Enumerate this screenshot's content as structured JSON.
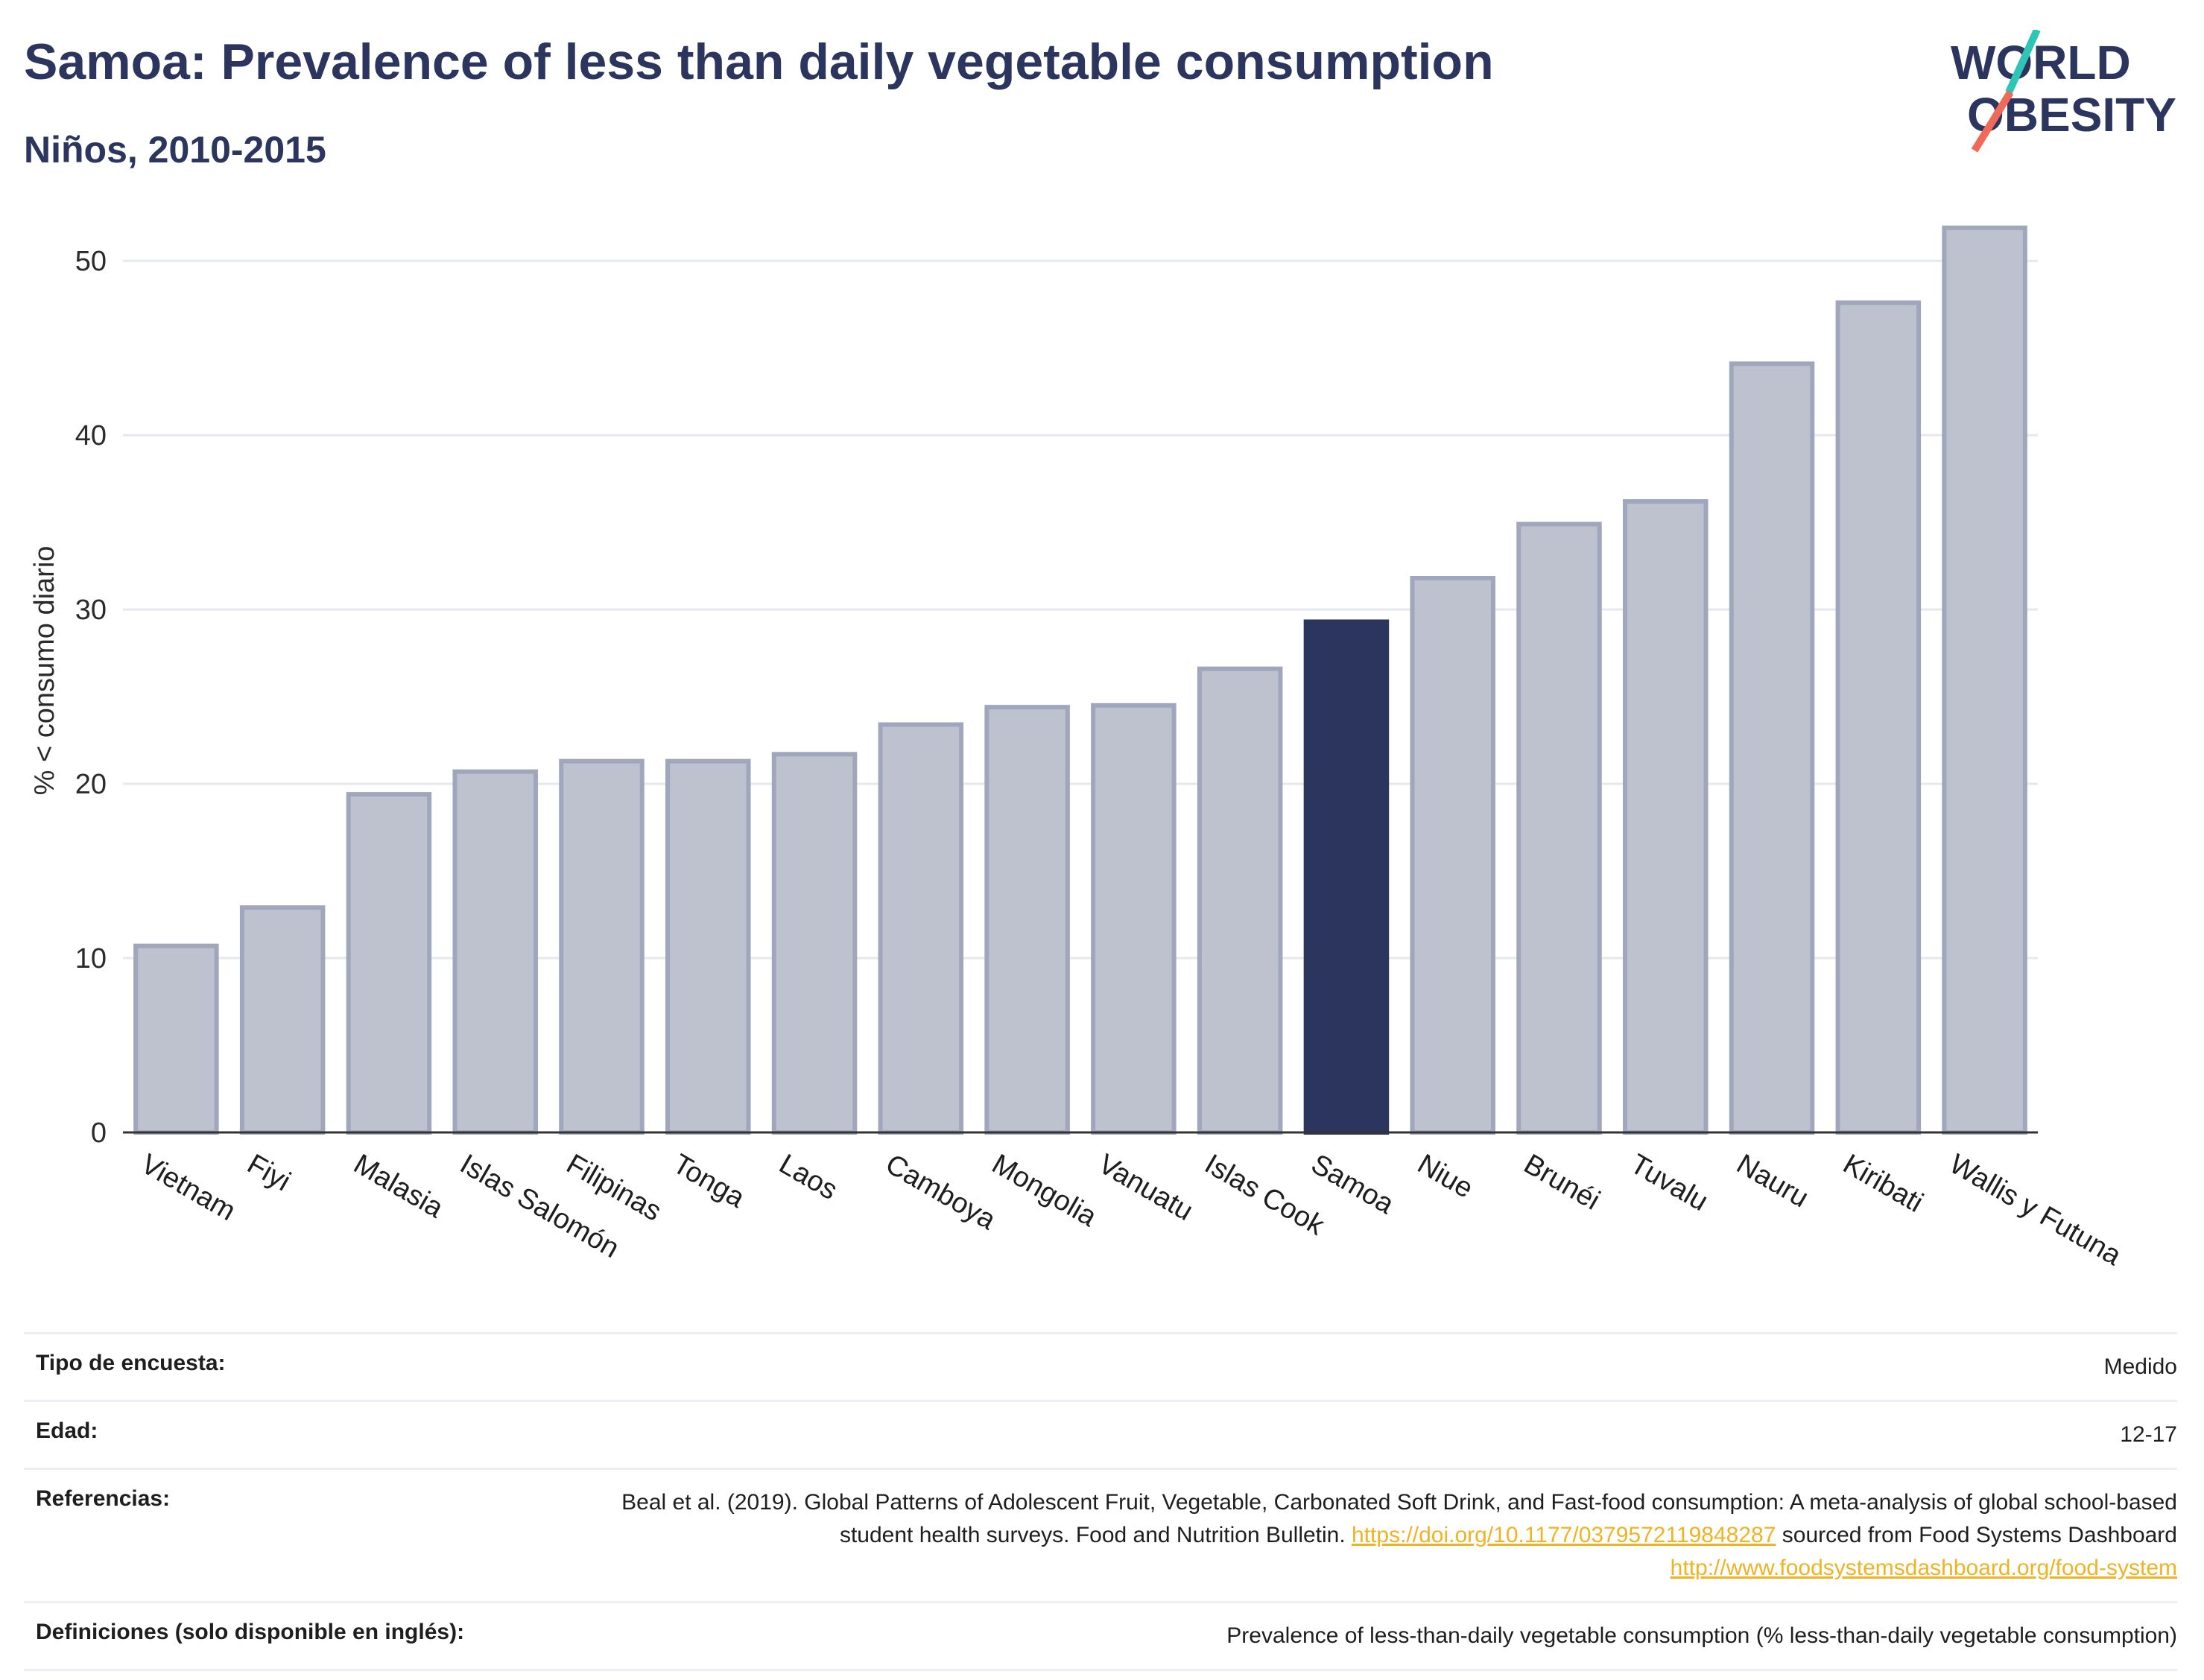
{
  "header": {
    "title": "Samoa: Prevalence of less than daily vegetable consumption",
    "subtitle": "Niños, 2010-2015"
  },
  "logo": {
    "line1": "WORLD",
    "line2": "OBESITY",
    "colors": {
      "text": "#2b355e",
      "slash_teal": "#2ec4b6",
      "slash_coral": "#f06a5a"
    }
  },
  "chart_data": {
    "type": "bar",
    "title": "",
    "xlabel": "",
    "ylabel": "% < consumo diario",
    "ylim": [
      0,
      53
    ],
    "yticks": [
      0,
      10,
      20,
      30,
      40,
      50
    ],
    "grid": true,
    "highlight": "Samoa",
    "colors": {
      "bar": "#bec2cf",
      "bar_border": "#a0a7bd",
      "highlight": "#2b355e",
      "grid": "#e6e8ef",
      "axis": "#333333"
    },
    "categories": [
      "Vietnam",
      "Fiyi",
      "Malasia",
      "Islas Salomón",
      "Filipinas",
      "Tonga",
      "Laos",
      "Camboya",
      "Mongolia",
      "Vanuatu",
      "Islas Cook",
      "Samoa",
      "Niue",
      "Brunéi",
      "Tuvalu",
      "Nauru",
      "Kiribati",
      "Wallis y Futuna"
    ],
    "values": [
      10.7,
      12.9,
      19.4,
      20.7,
      21.3,
      21.3,
      21.7,
      23.4,
      24.4,
      24.5,
      26.6,
      29.3,
      31.8,
      34.9,
      36.2,
      44.1,
      47.6,
      51.9
    ]
  },
  "info": {
    "survey_type": {
      "label": "Tipo de encuesta:",
      "value": "Medido"
    },
    "age": {
      "label": "Edad:",
      "value": "12-17"
    },
    "references": {
      "label": "Referencias:",
      "text1": "Beal et al. (2019). Global Patterns of Adolescent Fruit, Vegetable, Carbonated Soft Drink, and Fast-food consumption: A meta-analysis of global school-based student health surveys. Food and Nutrition Bulletin. ",
      "link1": "https://doi.org/10.1177/0379572119848287",
      "text2": " sourced from Food Systems Dashboard ",
      "link2": "http://www.foodsystemsdashboard.org/food-system"
    },
    "definitions": {
      "label": "Definiciones (solo disponible en inglés):",
      "value": "Prevalence of less-than-daily vegetable consumption (% less-than-daily vegetable consumption)"
    }
  }
}
